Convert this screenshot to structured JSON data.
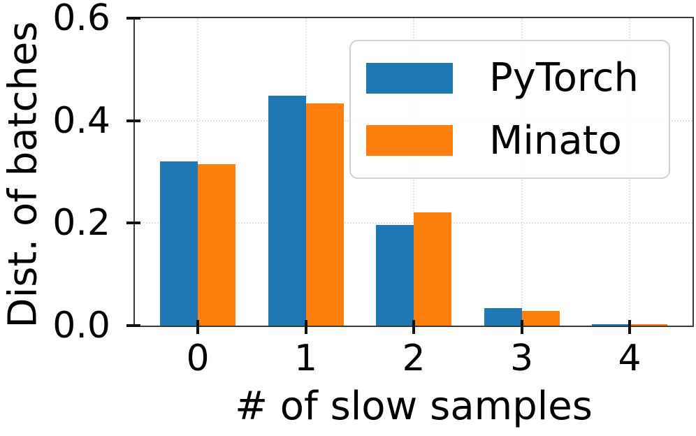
{
  "figure": {
    "background": "#ffffff"
  },
  "chart_data": {
    "type": "bar",
    "title": "",
    "xlabel": "# of slow samples",
    "ylabel": "Dist. of batches",
    "categories": [
      "0",
      "1",
      "2",
      "3",
      "4"
    ],
    "series": [
      {
        "name": "PyTorch",
        "color": "#1f77b4",
        "values": [
          0.32,
          0.448,
          0.196,
          0.034,
          0.002
        ]
      },
      {
        "name": "Minato",
        "color": "#ff7f0e",
        "values": [
          0.315,
          0.434,
          0.221,
          0.028,
          0.002
        ]
      }
    ],
    "ylim": [
      0,
      0.6
    ],
    "yticks": [
      0,
      0.2,
      0.4,
      0.6
    ],
    "ytick_labels": [
      "0.0",
      "0.2",
      "0.4",
      "0.6"
    ],
    "bar_width": 0.35,
    "grid": true,
    "grid_style": "dotted",
    "legend": {
      "position": "upper right",
      "entries": [
        "PyTorch",
        "Minato"
      ]
    }
  },
  "colors": {
    "axis": "#3a3a3a",
    "tick": "#111111",
    "grid": "#e4e4e4",
    "legend_border": "#d2d2d2",
    "text": "#000000"
  }
}
